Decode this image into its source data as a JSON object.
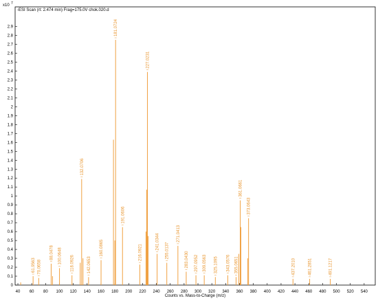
{
  "chart_data": {
    "type": "spectrum",
    "title": "-ESI Scan (rt: 2.474 min) Frag=175.0V chok.020.d",
    "y_multiplier": "x10",
    "y_exponent": "7",
    "x_label": "Counts vs. Mass-to-Charge (m/z)",
    "color": "#f0a040",
    "xlim": [
      36,
      556
    ],
    "ylim": [
      0,
      3.12
    ],
    "xticks": [
      40,
      60,
      80,
      100,
      120,
      140,
      160,
      180,
      200,
      220,
      240,
      260,
      280,
      300,
      320,
      340,
      360,
      380,
      400,
      420,
      440,
      460,
      480,
      500,
      520,
      540
    ],
    "yticks": [
      0,
      0.1,
      0.2,
      0.3,
      0.4,
      0.5,
      0.6,
      0.7,
      0.8,
      0.9,
      1,
      1.1,
      1.2,
      1.3,
      1.4,
      1.5,
      1.6,
      1.7,
      1.8,
      1.9,
      2,
      2.1,
      2.2,
      2.3,
      2.4,
      2.5,
      2.6,
      2.7,
      2.8,
      2.9
    ],
    "x": [
      44,
      61.9563,
      70.0658,
      88.0478,
      90,
      100.0648,
      118.0926,
      130,
      132.0706,
      134,
      142.0653,
      160.0865,
      178,
      180,
      181.0724,
      191.0606,
      216.0921,
      225,
      226,
      227.0231,
      228,
      241.0344,
      255.0137,
      271.0413,
      283.043,
      297.0952,
      309.0563,
      325.1095,
      343.0576,
      355.0651,
      359,
      361.0661,
      362,
      372,
      373.0643,
      437.201,
      461.2851,
      491.1217
    ],
    "values": [
      0.03,
      0.1,
      0.08,
      0.24,
      0.1,
      0.19,
      0.11,
      0.25,
      1.19,
      0.3,
      0.09,
      0.28,
      1.63,
      0.5,
      2.75,
      0.65,
      0.23,
      0.6,
      1.07,
      2.39,
      0.55,
      0.35,
      0.25,
      0.44,
      0.15,
      0.11,
      0.11,
      0.09,
      0.11,
      0.09,
      0.35,
      0.95,
      0.65,
      0.3,
      0.75,
      0.07,
      0.07,
      0.07
    ],
    "peak_labels": [
      null,
      "61.9563",
      "70.0658",
      "88.0478",
      null,
      "100.0648",
      "118.0926",
      null,
      "132.0706",
      null,
      "142.0653",
      "160.0865",
      null,
      null,
      "181.0724",
      "191.0606",
      "216.0921",
      null,
      null,
      "227.0231",
      null,
      "241.0344",
      "255.0137",
      "271.0413",
      "283.0430",
      "297.0952",
      "309.0563",
      "325.1095",
      "343.0576",
      "355.0651",
      null,
      "361.0661",
      null,
      null,
      "373.0643",
      "437.2010",
      "461.2851",
      "491.1217"
    ]
  }
}
